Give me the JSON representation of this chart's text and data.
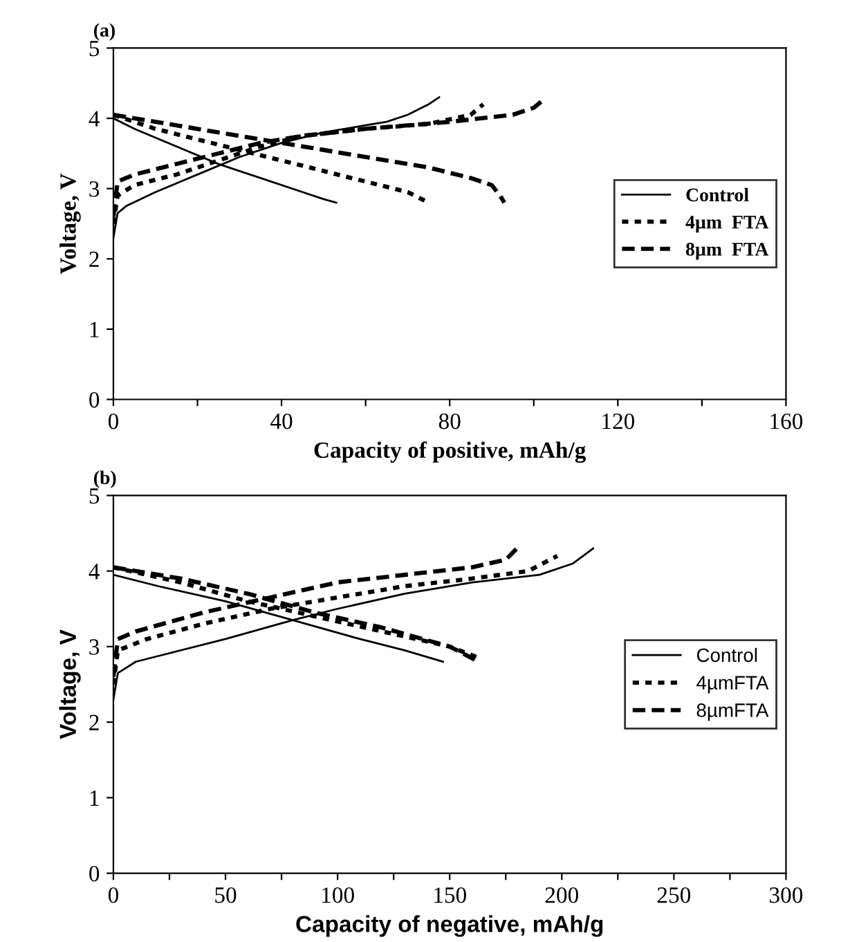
{
  "chart_data": [
    {
      "type": "line",
      "title": "(a)",
      "xlabel": "Capacity of positive, mAh/g",
      "ylabel": "Voltage, V",
      "xlim": [
        0,
        160
      ],
      "ylim": [
        0,
        5
      ],
      "xticks": [
        0,
        {
          "value": 20,
          "label": null
        },
        40,
        {
          "value": 60,
          "label": null
        },
        80,
        {
          "value": 100,
          "label": null
        },
        120,
        {
          "value": 140,
          "label": null
        },
        160
      ],
      "yticks": [
        0,
        1,
        2,
        3,
        4,
        5
      ],
      "legend": "right",
      "grid": false,
      "series": [
        {
          "name": "Control",
          "color": "#000000",
          "line_style": "solid",
          "x": [
            0,
            1,
            3,
            10,
            20,
            30,
            40,
            50,
            60,
            65,
            70,
            75,
            77.5
          ],
          "values": [
            2.3,
            2.65,
            2.75,
            2.95,
            3.2,
            3.45,
            3.65,
            3.8,
            3.9,
            3.95,
            4.05,
            4.2,
            4.3
          ]
        },
        {
          "color": "#000000",
          "line_style": "solid",
          "x": [
            0,
            5,
            15,
            25,
            35,
            45,
            50,
            53
          ],
          "values": [
            4.0,
            3.85,
            3.6,
            3.35,
            3.15,
            2.95,
            2.85,
            2.8
          ]
        },
        {
          "name": "4µm  FTA",
          "color": "#000000",
          "line_style": "dotted",
          "x": [
            0,
            1,
            5,
            15,
            25,
            35,
            45,
            60,
            75,
            85,
            88
          ],
          "values": [
            2.5,
            2.9,
            3.05,
            3.2,
            3.4,
            3.6,
            3.75,
            3.85,
            3.92,
            4.05,
            4.2
          ]
        },
        {
          "color": "#000000",
          "line_style": "dotted",
          "x": [
            0,
            10,
            20,
            30,
            40,
            50,
            60,
            70,
            75
          ],
          "values": [
            4.05,
            3.85,
            3.7,
            3.55,
            3.4,
            3.25,
            3.1,
            2.95,
            2.8
          ]
        },
        {
          "name": "8µm  FTA",
          "color": "#000000",
          "line_style": "dashed",
          "x": [
            0,
            1,
            5,
            15,
            25,
            35,
            45,
            60,
            80,
            95,
            100,
            102
          ],
          "values": [
            2.6,
            3.1,
            3.2,
            3.35,
            3.5,
            3.65,
            3.75,
            3.85,
            3.95,
            4.05,
            4.15,
            4.25
          ]
        },
        {
          "color": "#000000",
          "line_style": "dashed",
          "x": [
            0,
            15,
            30,
            45,
            60,
            75,
            85,
            90,
            92,
            93
          ],
          "values": [
            4.05,
            3.9,
            3.75,
            3.6,
            3.45,
            3.3,
            3.15,
            3.05,
            2.9,
            2.8
          ]
        }
      ]
    },
    {
      "type": "line",
      "title": "(b)",
      "xlabel": "Capacity of negative, mAh/g",
      "ylabel": "Voltage, V",
      "xlim": [
        0,
        300
      ],
      "ylim": [
        0,
        5
      ],
      "xticks": [
        0,
        {
          "value": 25,
          "label": null
        },
        50,
        {
          "value": 75,
          "label": null
        },
        100,
        {
          "value": 125,
          "label": null
        },
        150,
        {
          "value": 175,
          "label": null
        },
        200,
        {
          "value": 225,
          "label": null
        },
        250,
        {
          "value": 275,
          "label": null
        },
        300
      ],
      "yticks": [
        0,
        1,
        2,
        3,
        4,
        5
      ],
      "legend": "right",
      "grid": false,
      "series": [
        {
          "name": "Control",
          "color": "#000000",
          "line_style": "solid",
          "x": [
            0,
            2,
            10,
            50,
            80,
            100,
            130,
            160,
            190,
            205,
            214
          ],
          "values": [
            2.3,
            2.65,
            2.8,
            3.1,
            3.35,
            3.5,
            3.7,
            3.85,
            3.95,
            4.1,
            4.3
          ]
        },
        {
          "color": "#000000",
          "line_style": "solid",
          "x": [
            0,
            20,
            50,
            80,
            110,
            130,
            147
          ],
          "values": [
            3.95,
            3.8,
            3.6,
            3.35,
            3.1,
            2.95,
            2.8
          ]
        },
        {
          "name": "4µmFTA",
          "color": "#000000",
          "line_style": "dotted",
          "x": [
            0,
            2,
            15,
            40,
            70,
            100,
            130,
            160,
            185,
            198
          ],
          "values": [
            2.5,
            2.95,
            3.1,
            3.3,
            3.5,
            3.65,
            3.8,
            3.9,
            4.0,
            4.2
          ]
        },
        {
          "color": "#000000",
          "line_style": "dotted",
          "x": [
            0,
            30,
            60,
            90,
            120,
            150,
            163
          ],
          "values": [
            4.05,
            3.85,
            3.6,
            3.4,
            3.2,
            3.0,
            2.85
          ]
        },
        {
          "name": "8µmFTA",
          "color": "#000000",
          "line_style": "dashed",
          "x": [
            0,
            2,
            10,
            40,
            70,
            100,
            130,
            160,
            175,
            180
          ],
          "values": [
            2.6,
            3.1,
            3.2,
            3.45,
            3.65,
            3.85,
            3.95,
            4.05,
            4.15,
            4.3
          ]
        },
        {
          "color": "#000000",
          "line_style": "dashed",
          "x": [
            0,
            30,
            60,
            90,
            120,
            150,
            163
          ],
          "values": [
            4.05,
            3.9,
            3.7,
            3.45,
            3.25,
            3.0,
            2.8
          ]
        }
      ]
    }
  ]
}
